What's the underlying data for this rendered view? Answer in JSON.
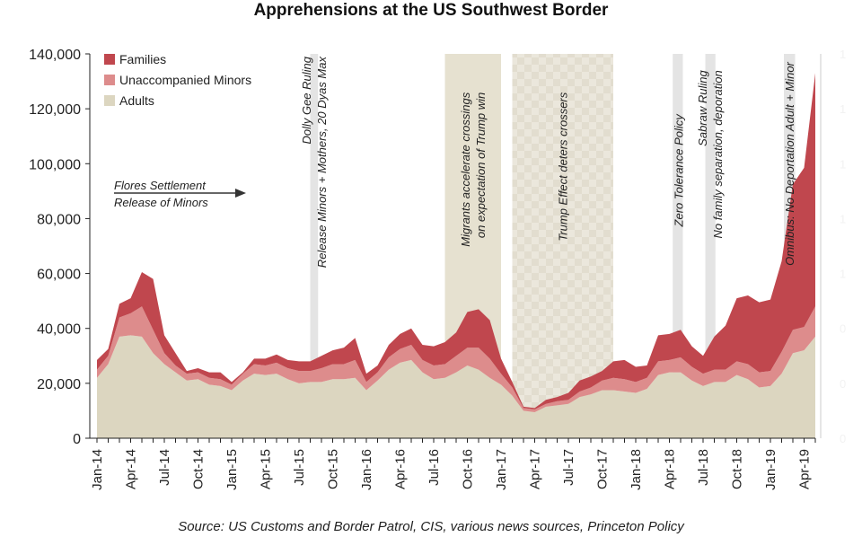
{
  "chart_data": {
    "type": "area",
    "stacked": true,
    "title": "Apprehensions at the US Southwest Border",
    "source": "Source: US Customs and Border Patrol, CIS, various news sources, Princeton Policy",
    "ylim": [
      0,
      140000
    ],
    "yticks": [
      0,
      20000,
      40000,
      60000,
      80000,
      100000,
      120000,
      140000
    ],
    "ytick_labels": [
      "0",
      "20,000",
      "40,000",
      "60,000",
      "80,000",
      "100,000",
      "120,000",
      "140,000"
    ],
    "x_start": "Jan-14",
    "x_tick_labels": [
      "Jan-14",
      "Apr-14",
      "Jul-14",
      "Oct-14",
      "Jan-15",
      "Apr-15",
      "Jul-15",
      "Oct-15",
      "Jan-16",
      "Apr-16",
      "Jul-16",
      "Oct-16",
      "Jan-17",
      "Apr-17",
      "Jul-17",
      "Oct-17",
      "Jan-18",
      "Apr-18",
      "Jul-18",
      "Oct-18",
      "Jan-19",
      "Apr-19"
    ],
    "x_tick_month_index": [
      0,
      3,
      6,
      9,
      12,
      15,
      18,
      21,
      24,
      27,
      30,
      33,
      36,
      39,
      42,
      45,
      48,
      51,
      54,
      57,
      60,
      63
    ],
    "series": [
      {
        "name": "Adults",
        "color": "#dcd6c0",
        "values": [
          22000,
          27000,
          37000,
          37500,
          37000,
          31000,
          27000,
          24000,
          21000,
          21500,
          19500,
          19000,
          17500,
          21000,
          23500,
          23000,
          23500,
          21500,
          20000,
          20500,
          20500,
          21500,
          21500,
          22000,
          17500,
          21000,
          25000,
          27500,
          28500,
          24000,
          21500,
          22000,
          24000,
          26500,
          25000,
          22000,
          19500,
          15500,
          10000,
          9500,
          11500,
          12000,
          12500,
          15000,
          16000,
          17500,
          17500,
          17000,
          16500,
          18000,
          23000,
          24000,
          24000,
          21000,
          19000,
          20500,
          20500,
          23000,
          21500,
          18500,
          19000,
          23500,
          31000,
          32000,
          37000
        ]
      },
      {
        "name": "Unaccompanied Minors",
        "color": "#dd8c8c",
        "values": [
          3000,
          3000,
          7000,
          8000,
          11000,
          8500,
          4000,
          2500,
          2500,
          2500,
          2500,
          2500,
          2000,
          2500,
          3500,
          3500,
          4000,
          4000,
          4500,
          4000,
          5000,
          5500,
          5500,
          6500,
          3000,
          3000,
          4500,
          5000,
          5500,
          4500,
          5000,
          5000,
          6000,
          6500,
          8000,
          7000,
          4000,
          3000,
          1000,
          1000,
          1000,
          1500,
          1500,
          2000,
          2500,
          3500,
          4500,
          4500,
          4000,
          4000,
          5000,
          4500,
          5500,
          5000,
          4500,
          4500,
          4500,
          5000,
          5500,
          5500,
          5500,
          8000,
          8500,
          8500,
          11000
        ]
      },
      {
        "name": "Families",
        "color": "#c0474e",
        "values": [
          3500,
          2500,
          5000,
          5500,
          12500,
          18500,
          6500,
          4500,
          1000,
          1500,
          2000,
          2500,
          1000,
          500,
          2000,
          2500,
          3000,
          3000,
          3500,
          3500,
          4500,
          5000,
          6000,
          8000,
          3000,
          2500,
          4500,
          5500,
          6000,
          5500,
          7000,
          8000,
          8500,
          13000,
          14000,
          14000,
          5500,
          2000,
          500,
          500,
          1500,
          1500,
          2500,
          4000,
          4000,
          3500,
          6000,
          7000,
          5500,
          4500,
          9500,
          9500,
          10000,
          7500,
          6500,
          12000,
          16000,
          23000,
          25000,
          25500,
          26000,
          33000,
          53000,
          58000,
          85000
        ]
      }
    ],
    "shaded_periods": [
      {
        "from": 19,
        "to": 19.7,
        "style": "light"
      },
      {
        "from": 31,
        "to": 36,
        "style": "medium"
      },
      {
        "from": 37,
        "to": 46,
        "style": "checker"
      },
      {
        "from": 51.3,
        "to": 52.2,
        "style": "light"
      },
      {
        "from": 54.2,
        "to": 55.1,
        "style": "light"
      },
      {
        "from": 61.2,
        "to": 62.2,
        "style": "light"
      }
    ],
    "annotations": [
      {
        "lines": [
          "Dolly Gee Ruling",
          "Release Minors + Mothers, 20 Dyas Max"
        ],
        "at": 19.3,
        "top_value": 140000
      },
      {
        "lines": [
          "Migrants accelerate crossings",
          "on expectation of Trump win"
        ],
        "at": 33.5,
        "top_value": 127000
      },
      {
        "lines": [
          "Trump Effect deters crossers"
        ],
        "at": 41.5,
        "top_value": 127000
      },
      {
        "lines": [
          "Zero Tolerance Policy"
        ],
        "at": 51.8,
        "top_value": 119000
      },
      {
        "lines": [
          "Sabraw Ruling",
          "No family separation, deporation"
        ],
        "at": 54.6,
        "top_value": 135000
      },
      {
        "lines": [
          "Omnibus: No Deportation Adult + Minor"
        ],
        "at": 61.7,
        "top_value": 138000
      }
    ],
    "flores_label": [
      "Flores Settlement",
      "Release of Minors"
    ],
    "legend": [
      "Families",
      "Unaccompanied Minors",
      "Adults"
    ],
    "right_axis_ticks": [
      "1",
      "1",
      "1",
      "1",
      "1",
      "0",
      "0",
      "0"
    ]
  }
}
